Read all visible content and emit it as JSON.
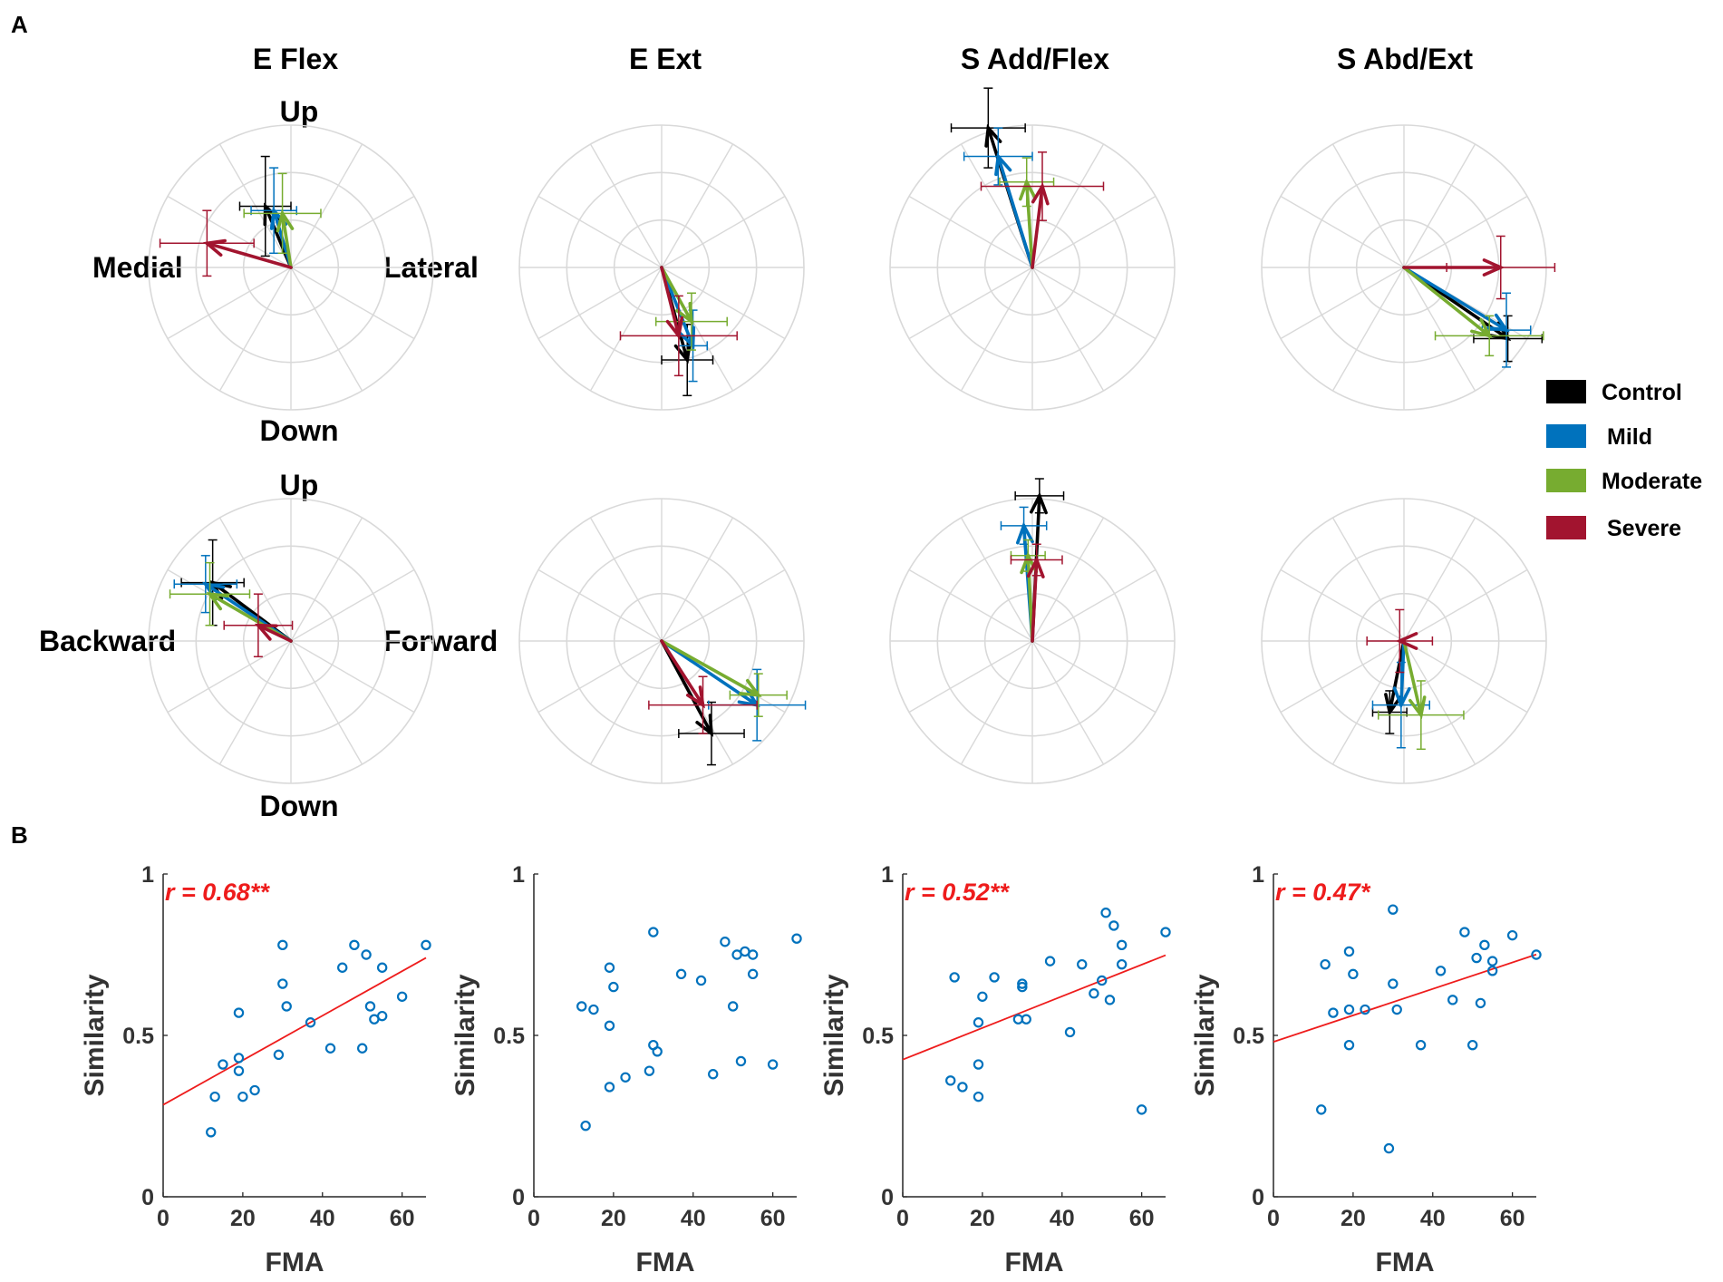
{
  "panels": {
    "a": "A",
    "b": "B"
  },
  "column_titles": [
    "E Flex",
    "E Ext",
    "S Add/Flex",
    "S Abd/Ext"
  ],
  "direction_labels": {
    "top_up": "Up",
    "top_down": "Down",
    "medial": "Medial",
    "lateral": "Lateral",
    "bottom_up": "Up",
    "bottom_down": "Down",
    "backward": "Backward",
    "forward": "Forward"
  },
  "legend": [
    {
      "name": "Control",
      "color": "#000000"
    },
    {
      "name": "Mild",
      "color": "#0072bd"
    },
    {
      "name": "Moderate",
      "color": "#77ac30"
    },
    {
      "name": "Severe",
      "color": "#a2142f"
    }
  ],
  "chart_data": [
    {
      "type": "polar-vector",
      "title": "E Flex (Medial/Lateral vs Up/Down)",
      "column": 0,
      "row": 0,
      "rmax": 1,
      "vectors": [
        {
          "group": "Control",
          "x": -0.18,
          "y": 0.43,
          "xerr": 0.18,
          "yerr": 0.35
        },
        {
          "group": "Mild",
          "x": -0.12,
          "y": 0.4,
          "xerr": 0.16,
          "yerr": 0.3
        },
        {
          "group": "Moderate",
          "x": -0.06,
          "y": 0.38,
          "xerr": 0.27,
          "yerr": 0.28
        },
        {
          "group": "Severe",
          "x": -0.59,
          "y": 0.17,
          "xerr": 0.33,
          "yerr": 0.23
        }
      ]
    },
    {
      "type": "polar-vector",
      "title": "E Ext (Medial/Lateral vs Up/Down)",
      "column": 1,
      "row": 0,
      "rmax": 1,
      "vectors": [
        {
          "group": "Control",
          "x": 0.18,
          "y": -0.65,
          "xerr": 0.18,
          "yerr": 0.25
        },
        {
          "group": "Mild",
          "x": 0.22,
          "y": -0.55,
          "xerr": 0.1,
          "yerr": 0.25
        },
        {
          "group": "Moderate",
          "x": 0.21,
          "y": -0.38,
          "xerr": 0.25,
          "yerr": 0.2
        },
        {
          "group": "Severe",
          "x": 0.12,
          "y": -0.48,
          "xerr": 0.41,
          "yerr": 0.28
        }
      ]
    },
    {
      "type": "polar-vector",
      "title": "S Add/Flex (Medial/Lateral vs Up/Down)",
      "column": 2,
      "row": 0,
      "rmax": 1,
      "vectors": [
        {
          "group": "Control",
          "x": -0.31,
          "y": 0.98,
          "xerr": 0.26,
          "yerr": 0.28
        },
        {
          "group": "Mild",
          "x": -0.24,
          "y": 0.78,
          "xerr": 0.24,
          "yerr": 0.2
        },
        {
          "group": "Moderate",
          "x": -0.04,
          "y": 0.6,
          "xerr": 0.19,
          "yerr": 0.17
        },
        {
          "group": "Severe",
          "x": 0.07,
          "y": 0.57,
          "xerr": 0.43,
          "yerr": 0.24
        }
      ]
    },
    {
      "type": "polar-vector",
      "title": "S Abd/Ext (Medial/Lateral vs Up/Down)",
      "column": 3,
      "row": 0,
      "rmax": 1,
      "vectors": [
        {
          "group": "Control",
          "x": 0.73,
          "y": -0.5,
          "xerr": 0.24,
          "yerr": 0.16
        },
        {
          "group": "Mild",
          "x": 0.72,
          "y": -0.44,
          "xerr": 0.17,
          "yerr": 0.26
        },
        {
          "group": "Moderate",
          "x": 0.6,
          "y": -0.48,
          "xerr": 0.38,
          "yerr": 0.14
        },
        {
          "group": "Severe",
          "x": 0.68,
          "y": 0.0,
          "xerr": 0.38,
          "yerr": 0.22
        }
      ]
    },
    {
      "type": "polar-vector",
      "title": "E Flex (Backward/Forward vs Up/Down)",
      "column": 0,
      "row": 1,
      "rmax": 1,
      "vectors": [
        {
          "group": "Control",
          "x": -0.55,
          "y": 0.41,
          "xerr": 0.22,
          "yerr": 0.3
        },
        {
          "group": "Mild",
          "x": -0.6,
          "y": 0.4,
          "xerr": 0.22,
          "yerr": 0.2
        },
        {
          "group": "Moderate",
          "x": -0.57,
          "y": 0.33,
          "xerr": 0.28,
          "yerr": 0.22
        },
        {
          "group": "Severe",
          "x": -0.23,
          "y": 0.11,
          "xerr": 0.24,
          "yerr": 0.22
        }
      ]
    },
    {
      "type": "polar-vector",
      "title": "E Ext (Backward/Forward vs Up/Down)",
      "column": 1,
      "row": 1,
      "rmax": 1,
      "vectors": [
        {
          "group": "Control",
          "x": 0.35,
          "y": -0.65,
          "xerr": 0.23,
          "yerr": 0.22
        },
        {
          "group": "Mild",
          "x": 0.67,
          "y": -0.45,
          "xerr": 0.34,
          "yerr": 0.25
        },
        {
          "group": "Moderate",
          "x": 0.68,
          "y": -0.38,
          "xerr": 0.2,
          "yerr": 0.15
        },
        {
          "group": "Severe",
          "x": 0.29,
          "y": -0.45,
          "xerr": 0.38,
          "yerr": 0.2
        }
      ]
    },
    {
      "type": "polar-vector",
      "title": "S Add/Flex (Backward/Forward vs Up/Down)",
      "column": 2,
      "row": 1,
      "rmax": 1,
      "vectors": [
        {
          "group": "Control",
          "x": 0.05,
          "y": 1.02,
          "xerr": 0.17,
          "yerr": 0.12
        },
        {
          "group": "Mild",
          "x": -0.06,
          "y": 0.81,
          "xerr": 0.16,
          "yerr": 0.13
        },
        {
          "group": "Moderate",
          "x": -0.03,
          "y": 0.6,
          "xerr": 0.12,
          "yerr": 0.11
        },
        {
          "group": "Severe",
          "x": 0.03,
          "y": 0.57,
          "xerr": 0.18,
          "yerr": 0.11
        }
      ]
    },
    {
      "type": "polar-vector",
      "title": "S Abd/Ext (Backward/Forward vs Up/Down)",
      "column": 3,
      "row": 1,
      "rmax": 1,
      "vectors": [
        {
          "group": "Control",
          "x": -0.1,
          "y": -0.5,
          "xerr": 0.12,
          "yerr": 0.15
        },
        {
          "group": "Mild",
          "x": -0.02,
          "y": -0.45,
          "xerr": 0.2,
          "yerr": 0.3
        },
        {
          "group": "Moderate",
          "x": 0.12,
          "y": -0.52,
          "xerr": 0.3,
          "yerr": 0.24
        },
        {
          "group": "Severe",
          "x": -0.03,
          "y": 0.0,
          "xerr": 0.23,
          "yerr": 0.22
        }
      ]
    },
    {
      "type": "scatter",
      "title": "E Flex similarity vs FMA",
      "xlabel": "FMA",
      "ylabel": "Similarity",
      "xlim": [
        0,
        66
      ],
      "ylim": [
        0,
        1
      ],
      "xticks": [
        0,
        20,
        40,
        60
      ],
      "yticks": [
        0,
        0.5,
        1
      ],
      "yticklabels": [
        "0",
        "0.5",
        "1"
      ],
      "annotation": "r = 0.68**",
      "fit": {
        "intercept": 0.285,
        "slope": 0.0069
      },
      "points": [
        [
          12,
          0.2
        ],
        [
          13,
          0.31
        ],
        [
          15,
          0.41
        ],
        [
          19,
          0.39
        ],
        [
          19,
          0.43
        ],
        [
          19,
          0.57
        ],
        [
          20,
          0.31
        ],
        [
          23,
          0.33
        ],
        [
          29,
          0.44
        ],
        [
          30,
          0.66
        ],
        [
          30,
          0.78
        ],
        [
          31,
          0.59
        ],
        [
          37,
          0.54
        ],
        [
          42,
          0.46
        ],
        [
          45,
          0.71
        ],
        [
          48,
          0.78
        ],
        [
          50,
          0.46
        ],
        [
          51,
          0.75
        ],
        [
          52,
          0.59
        ],
        [
          53,
          0.55
        ],
        [
          55,
          0.71
        ],
        [
          55,
          0.56
        ],
        [
          60,
          0.62
        ],
        [
          66,
          0.78
        ]
      ]
    },
    {
      "type": "scatter",
      "title": "E Ext similarity vs FMA",
      "xlabel": "",
      "ylabel": "Similarity",
      "xlim": [
        0,
        66
      ],
      "ylim": [
        0,
        1
      ],
      "xticks": [
        0,
        20,
        40,
        60
      ],
      "yticks": [
        0,
        0.5,
        1
      ],
      "yticklabels": [
        "0",
        "0.5",
        "1"
      ],
      "annotation": "",
      "fit": null,
      "points": [
        [
          12,
          0.59
        ],
        [
          13,
          0.22
        ],
        [
          15,
          0.58
        ],
        [
          19,
          0.71
        ],
        [
          19,
          0.53
        ],
        [
          19,
          0.34
        ],
        [
          20,
          0.65
        ],
        [
          23,
          0.37
        ],
        [
          29,
          0.39
        ],
        [
          30,
          0.82
        ],
        [
          30,
          0.47
        ],
        [
          31,
          0.45
        ],
        [
          37,
          0.69
        ],
        [
          42,
          0.67
        ],
        [
          45,
          0.38
        ],
        [
          48,
          0.79
        ],
        [
          50,
          0.59
        ],
        [
          51,
          0.75
        ],
        [
          52,
          0.42
        ],
        [
          53,
          0.76
        ],
        [
          55,
          0.75
        ],
        [
          55,
          0.69
        ],
        [
          60,
          0.41
        ],
        [
          66,
          0.8
        ]
      ]
    },
    {
      "type": "scatter",
      "title": "S Add/Flex similarity vs FMA",
      "xlabel": "",
      "ylabel": "Similarity",
      "xlim": [
        0,
        66
      ],
      "ylim": [
        0,
        1
      ],
      "xticks": [
        0,
        20,
        40,
        60
      ],
      "yticks": [
        0,
        0.5,
        1
      ],
      "yticklabels": [
        "0",
        "0.5",
        "1"
      ],
      "annotation": "r = 0.52**",
      "fit": {
        "intercept": 0.425,
        "slope": 0.0049
      },
      "points": [
        [
          12,
          0.36
        ],
        [
          13,
          0.68
        ],
        [
          15,
          0.34
        ],
        [
          19,
          0.41
        ],
        [
          19,
          0.54
        ],
        [
          19,
          0.31
        ],
        [
          20,
          0.62
        ],
        [
          23,
          0.68
        ],
        [
          29,
          0.55
        ],
        [
          30,
          0.65
        ],
        [
          30,
          0.66
        ],
        [
          31,
          0.55
        ],
        [
          37,
          0.73
        ],
        [
          42,
          0.51
        ],
        [
          45,
          0.72
        ],
        [
          48,
          0.63
        ],
        [
          50,
          0.67
        ],
        [
          51,
          0.88
        ],
        [
          52,
          0.61
        ],
        [
          53,
          0.84
        ],
        [
          55,
          0.72
        ],
        [
          55,
          0.78
        ],
        [
          60,
          0.27
        ],
        [
          66,
          0.82
        ]
      ]
    },
    {
      "type": "scatter",
      "title": "S Abd/Ext similarity vs FMA",
      "xlabel": "",
      "ylabel": "Similarity",
      "xlim": [
        0,
        66
      ],
      "ylim": [
        0,
        1
      ],
      "xticks": [
        0,
        20,
        40,
        60
      ],
      "yticks": [
        0,
        0.5,
        1
      ],
      "yticklabels": [
        "0",
        "0.5",
        "1"
      ],
      "annotation": "r = 0.47*",
      "fit": {
        "intercept": 0.48,
        "slope": 0.0041
      },
      "points": [
        [
          12,
          0.27
        ],
        [
          13,
          0.72
        ],
        [
          15,
          0.57
        ],
        [
          19,
          0.47
        ],
        [
          19,
          0.58
        ],
        [
          19,
          0.76
        ],
        [
          20,
          0.69
        ],
        [
          23,
          0.58
        ],
        [
          29,
          0.15
        ],
        [
          30,
          0.66
        ],
        [
          30,
          0.89
        ],
        [
          31,
          0.58
        ],
        [
          37,
          0.47
        ],
        [
          42,
          0.7
        ],
        [
          45,
          0.61
        ],
        [
          48,
          0.82
        ],
        [
          50,
          0.47
        ],
        [
          51,
          0.74
        ],
        [
          52,
          0.6
        ],
        [
          53,
          0.78
        ],
        [
          55,
          0.73
        ],
        [
          55,
          0.7
        ],
        [
          60,
          0.81
        ],
        [
          66,
          0.75
        ]
      ]
    }
  ]
}
